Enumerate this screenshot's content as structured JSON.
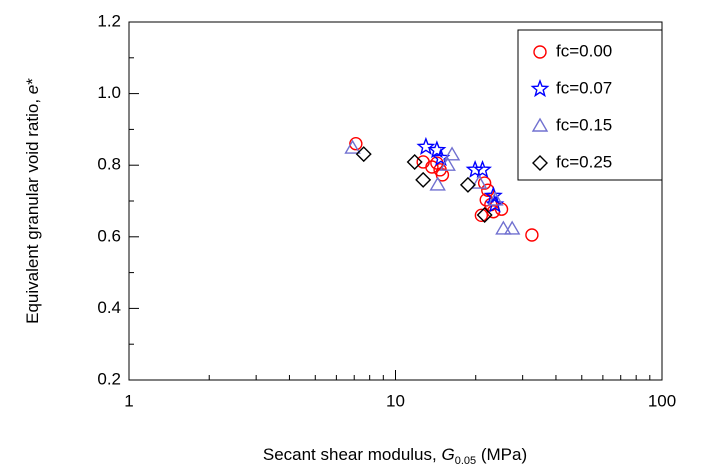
{
  "chart_data": {
    "type": "scatter",
    "x_label_parts": [
      "Secant shear modulus, ",
      "G",
      "0.05",
      " (MPa)"
    ],
    "y_label_parts": [
      "Equivalent granular void ratio, ",
      "e",
      "*"
    ],
    "x_log": true,
    "xlim": [
      1,
      100
    ],
    "xticks": [
      1,
      10,
      100
    ],
    "x_minor_ticks": [
      2,
      3,
      4,
      5,
      6,
      7,
      8,
      9,
      20,
      30,
      40,
      50,
      60,
      70,
      80,
      90
    ],
    "ylim": [
      0.2,
      1.2
    ],
    "yticks": [
      0.2,
      0.4,
      0.6,
      0.8,
      {
        "value": 1.0,
        "label": "1.0"
      },
      1.2
    ],
    "y_minor_ticks": [
      0.3,
      0.5,
      0.7,
      0.9,
      1.1
    ],
    "legend": "upper right",
    "series": [
      {
        "name": "fc=0.00",
        "color": "#ff0000",
        "marker": "circle",
        "x": [
          7.1,
          12.7,
          13.7,
          14.3,
          14.7,
          15.0,
          21.9,
          21.6,
          22.2,
          22.8,
          23.3,
          21.0,
          25.0,
          32.5
        ],
        "values": [
          0.86,
          0.809,
          0.795,
          0.806,
          0.787,
          0.773,
          0.703,
          0.75,
          0.73,
          0.69,
          0.67,
          0.66,
          0.677,
          0.605
        ]
      },
      {
        "name": "fc=0.07",
        "color": "#0000ff",
        "marker": "star",
        "x": [
          13.0,
          14.3,
          14.8,
          19.9,
          21.2,
          23.3,
          23.6
        ],
        "values": [
          0.851,
          0.842,
          0.82,
          0.787,
          0.787,
          0.714,
          0.69
        ]
      },
      {
        "name": "fc=0.15",
        "color": "#7070d0",
        "marker": "triangle",
        "x": [
          6.9,
          14.4,
          16.3,
          15.7,
          20.6,
          25.4,
          27.4,
          23.7
        ],
        "values": [
          0.848,
          0.745,
          0.829,
          0.8,
          0.75,
          0.622,
          0.622,
          0.703
        ]
      },
      {
        "name": "fc=0.25",
        "color": "#000000",
        "marker": "diamond",
        "x": [
          7.6,
          11.8,
          12.7,
          18.7,
          21.6
        ],
        "values": [
          0.831,
          0.809,
          0.759,
          0.745,
          0.661
        ]
      }
    ]
  }
}
